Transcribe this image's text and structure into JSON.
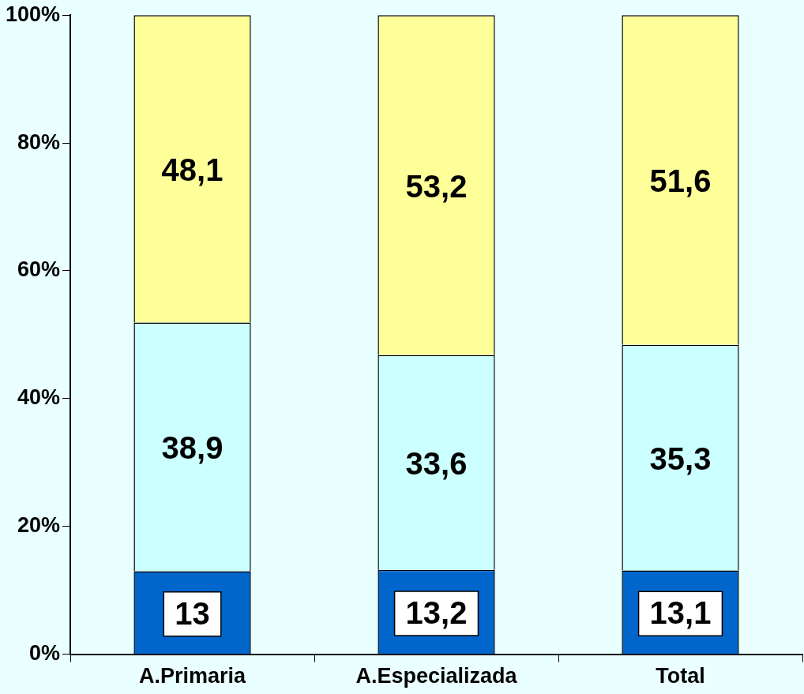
{
  "chart_data": {
    "type": "bar",
    "stacked": true,
    "categories": [
      "A.Primaria",
      "A.Especializada",
      "Total"
    ],
    "series": [
      {
        "color": "#0066cc",
        "values": [
          13,
          13.2,
          13.1
        ],
        "value_labels": [
          "13",
          "13,2",
          "13,1"
        ]
      },
      {
        "color": "#ccffff",
        "values": [
          38.9,
          33.6,
          35.3
        ],
        "value_labels": [
          "38,9",
          "33,6",
          "35,3"
        ]
      },
      {
        "color": "#ffff99",
        "values": [
          48.1,
          53.2,
          51.6
        ],
        "value_labels": [
          "48,1",
          "53,2",
          "51,6"
        ]
      }
    ],
    "ylim": [
      0,
      100
    ],
    "yticks": [
      {
        "value": 0,
        "label": "0%"
      },
      {
        "value": 20,
        "label": "20%"
      },
      {
        "value": 40,
        "label": "40%"
      },
      {
        "value": 60,
        "label": "60%"
      },
      {
        "value": 80,
        "label": "80%"
      },
      {
        "value": 100,
        "label": "100%"
      }
    ],
    "grid": false,
    "legend": false
  }
}
